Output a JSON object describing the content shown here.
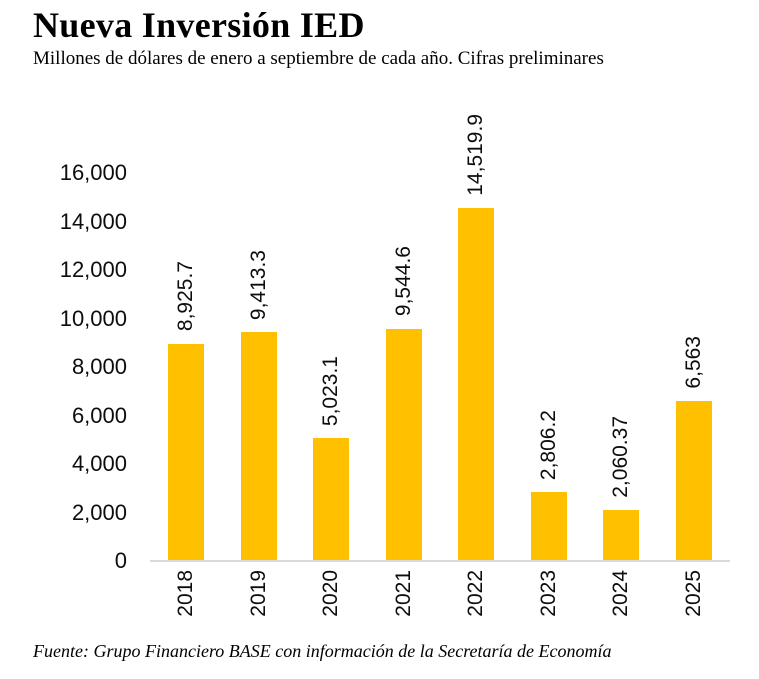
{
  "header": {
    "title": "Nueva Inversión IED",
    "subtitle": "Millones de dólares de enero a septiembre de cada año. Cifras preliminares"
  },
  "chart_data": {
    "type": "bar",
    "title": "Nueva Inversión IED",
    "subtitle": "Millones de dólares de enero a septiembre de cada año. Cifras preliminares",
    "categories": [
      "2018",
      "2019",
      "2020",
      "2021",
      "2022",
      "2023",
      "2024",
      "2025"
    ],
    "values": [
      8925.7,
      9413.3,
      5023.1,
      9544.6,
      14519.9,
      2806.2,
      2060.37,
      6563
    ],
    "value_labels": [
      "8,925.7",
      "9,413.3",
      "5,023.1",
      "9,544.6",
      "14,519.9",
      "2,806.2",
      "2,060.37",
      "6,563"
    ],
    "xlabel": "",
    "ylabel": "",
    "ylim": [
      0,
      16000
    ],
    "y_ticks": [
      {
        "value": 0,
        "label": "0"
      },
      {
        "value": 2000,
        "label": "2,000"
      },
      {
        "value": 4000,
        "label": "4,000"
      },
      {
        "value": 6000,
        "label": "6,000"
      },
      {
        "value": 8000,
        "label": "8,000"
      },
      {
        "value": 10000,
        "label": "10,000"
      },
      {
        "value": 12000,
        "label": "12,000"
      },
      {
        "value": 14000,
        "label": "14,000"
      },
      {
        "value": 16000,
        "label": "16,000"
      }
    ],
    "grid": false,
    "legend": false,
    "label_rotation_deg": 90,
    "colors": {
      "bar": "#FFC000",
      "axis_line": "#D9D9D9",
      "text": "#0D0D0D"
    }
  },
  "footer": {
    "source": "Fuente: Grupo Financiero BASE con información de la Secretaría de Economía"
  }
}
